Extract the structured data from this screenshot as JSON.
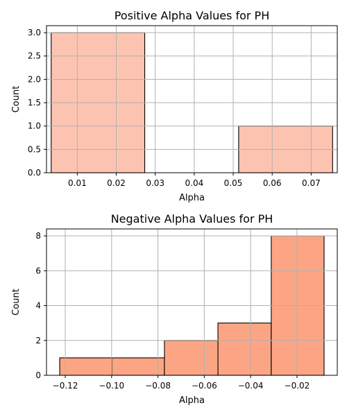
{
  "chart_data": [
    {
      "type": "bar",
      "title": "Positive Alpha Values for PH",
      "xlabel": "Alpha",
      "ylabel": "Count",
      "color": "#fcc4b0",
      "edge_color": "#000000",
      "bins": [
        {
          "x0": 0.0033,
          "x1": 0.0273,
          "count": 3
        },
        {
          "x0": 0.0273,
          "x1": 0.0514,
          "count": 0
        },
        {
          "x0": 0.0514,
          "x1": 0.0755,
          "count": 1
        }
      ],
      "xlim": [
        0.0021,
        0.0767
      ],
      "ylim": [
        0,
        3.15
      ],
      "xticks": [
        0.01,
        0.02,
        0.03,
        0.04,
        0.05,
        0.06,
        0.07
      ],
      "xtick_labels": [
        "0.01",
        "0.02",
        "0.03",
        "0.04",
        "0.05",
        "0.06",
        "0.07"
      ],
      "yticks": [
        0,
        0.5,
        1,
        1.5,
        2,
        2.5,
        3
      ],
      "ytick_labels": [
        "0.0",
        "0.5",
        "1.0",
        "1.5",
        "2.0",
        "2.5",
        "3.0"
      ],
      "grid": true
    },
    {
      "type": "bar",
      "title": "Negative Alpha Values for PH",
      "xlabel": "Alpha",
      "ylabel": "Count",
      "color": "#fca584",
      "edge_color": "#000000",
      "bins": [
        {
          "x0": -0.1224,
          "x1": -0.0999,
          "count": 1
        },
        {
          "x0": -0.0999,
          "x1": -0.0772,
          "count": 1
        },
        {
          "x0": -0.0772,
          "x1": -0.0541,
          "count": 2
        },
        {
          "x0": -0.0541,
          "x1": -0.0311,
          "count": 3
        },
        {
          "x0": -0.0311,
          "x1": -0.0083,
          "count": 8
        }
      ],
      "xlim": [
        -0.1281,
        -0.0026
      ],
      "ylim": [
        0,
        8.4
      ],
      "xticks": [
        -0.12,
        -0.1,
        -0.08,
        -0.06,
        -0.04,
        -0.02
      ],
      "xtick_labels": [
        "−0.12",
        "−0.10",
        "−0.08",
        "−0.06",
        "−0.04",
        "−0.02"
      ],
      "yticks": [
        0,
        2,
        4,
        6,
        8
      ],
      "ytick_labels": [
        "0",
        "2",
        "4",
        "6",
        "8"
      ],
      "grid": true
    }
  ]
}
